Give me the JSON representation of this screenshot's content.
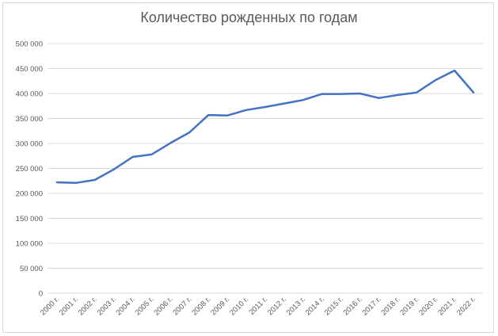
{
  "chart_data": {
    "type": "line",
    "title": "Количество рожденных  по годам",
    "xlabel": "",
    "ylabel": "",
    "categories": [
      "2000 г.",
      "2001 г.",
      "2002 г.",
      "2003 г.",
      "2004 г.",
      "2005 г.",
      "2006 г.",
      "2007 г.",
      "2008 г.",
      "2009 г.",
      "2010 г.",
      "2011 г.",
      "2012 г.",
      "2013 г.",
      "2014 г.",
      "2015 г.",
      "2016 г.",
      "2017 г.",
      "2018 г.",
      "2019 г.",
      "2020 г.",
      "2021 г.",
      "2022 г."
    ],
    "series": [
      {
        "values": [
          222000,
          221000,
          227000,
          248000,
          273000,
          278000,
          301000,
          322000,
          357000,
          356000,
          367000,
          373000,
          380000,
          387000,
          399000,
          399000,
          400000,
          391000,
          397000,
          402000,
          427000,
          446000,
          402000
        ]
      }
    ],
    "ylim": [
      0,
      500000
    ],
    "yticks": [
      "0",
      "50 000",
      "100 000",
      "150 000",
      "200 000",
      "250 000",
      "300 000",
      "350 000",
      "400 000",
      "450 000",
      "500 000"
    ],
    "grid": true,
    "line_color": "#4472c4",
    "grid_color": "#d9d9d9"
  }
}
